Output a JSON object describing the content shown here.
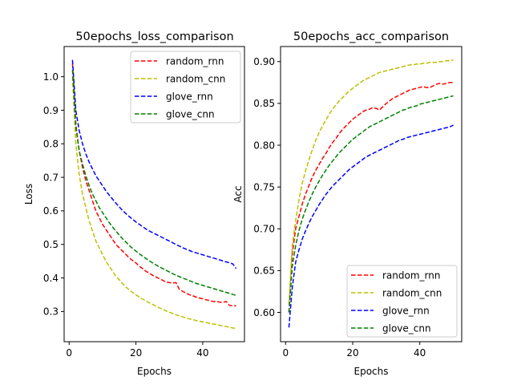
{
  "chart_data": [
    {
      "type": "line",
      "title": "50epochs_loss_comparison",
      "xlabel": "Epochs",
      "ylabel": "Loss",
      "xlim": [
        -1.5,
        52.5
      ],
      "ylim": [
        0.21,
        1.09
      ],
      "xticks": [
        0,
        20,
        40
      ],
      "yticks": [
        0.3,
        0.4,
        0.5,
        0.6,
        0.7,
        0.8,
        0.9,
        1.0
      ],
      "ytick_labels": [
        "0.3",
        "0.4",
        "0.5",
        "0.6",
        "0.7",
        "0.8",
        "0.9",
        "1.0"
      ],
      "legend_position": "upper right",
      "x": [
        1,
        2,
        3,
        4,
        5,
        6,
        7,
        8,
        9,
        10,
        11,
        12,
        13,
        14,
        15,
        16,
        17,
        18,
        19,
        20,
        21,
        22,
        23,
        24,
        25,
        26,
        27,
        28,
        29,
        30,
        31,
        32,
        33,
        34,
        35,
        36,
        37,
        38,
        39,
        40,
        41,
        42,
        43,
        44,
        45,
        46,
        47,
        48,
        49,
        50
      ],
      "series": [
        {
          "name": "random_rnn",
          "color": "#ff0000",
          "values": [
            1.04,
            0.86,
            0.78,
            0.73,
            0.69,
            0.66,
            0.63,
            0.6,
            0.58,
            0.56,
            0.545,
            0.53,
            0.515,
            0.5,
            0.49,
            0.48,
            0.47,
            0.46,
            0.452,
            0.445,
            0.435,
            0.428,
            0.42,
            0.414,
            0.408,
            0.403,
            0.398,
            0.393,
            0.388,
            0.386,
            0.385,
            0.386,
            0.366,
            0.36,
            0.355,
            0.35,
            0.347,
            0.343,
            0.34,
            0.338,
            0.335,
            0.333,
            0.33,
            0.33,
            0.328,
            0.327,
            0.33,
            0.318,
            0.317,
            0.317
          ]
        },
        {
          "name": "random_cnn",
          "color": "#bfbf00",
          "values": [
            1.0,
            0.8,
            0.71,
            0.65,
            0.61,
            0.57,
            0.54,
            0.51,
            0.49,
            0.47,
            0.45,
            0.435,
            0.42,
            0.405,
            0.395,
            0.383,
            0.373,
            0.365,
            0.357,
            0.35,
            0.343,
            0.337,
            0.332,
            0.326,
            0.321,
            0.316,
            0.311,
            0.307,
            0.302,
            0.298,
            0.294,
            0.29,
            0.287,
            0.284,
            0.281,
            0.278,
            0.276,
            0.273,
            0.271,
            0.269,
            0.267,
            0.265,
            0.263,
            0.261,
            0.259,
            0.257,
            0.255,
            0.253,
            0.251,
            0.249
          ]
        },
        {
          "name": "glove_rnn",
          "color": "#0000ff",
          "values": [
            1.05,
            0.9,
            0.84,
            0.8,
            0.77,
            0.745,
            0.725,
            0.705,
            0.69,
            0.675,
            0.66,
            0.647,
            0.635,
            0.623,
            0.612,
            0.601,
            0.592,
            0.583,
            0.575,
            0.567,
            0.56,
            0.553,
            0.546,
            0.54,
            0.535,
            0.53,
            0.525,
            0.52,
            0.515,
            0.51,
            0.505,
            0.5,
            0.495,
            0.49,
            0.486,
            0.482,
            0.478,
            0.475,
            0.472,
            0.469,
            0.466,
            0.463,
            0.46,
            0.457,
            0.454,
            0.451,
            0.448,
            0.445,
            0.442,
            0.428
          ]
        },
        {
          "name": "glove_cnn",
          "color": "#008000",
          "values": [
            1.02,
            0.85,
            0.78,
            0.74,
            0.705,
            0.675,
            0.65,
            0.63,
            0.61,
            0.595,
            0.58,
            0.565,
            0.552,
            0.54,
            0.528,
            0.517,
            0.507,
            0.497,
            0.488,
            0.48,
            0.472,
            0.465,
            0.458,
            0.451,
            0.445,
            0.439,
            0.433,
            0.428,
            0.423,
            0.418,
            0.413,
            0.408,
            0.404,
            0.4,
            0.396,
            0.392,
            0.388,
            0.384,
            0.381,
            0.378,
            0.375,
            0.372,
            0.369,
            0.366,
            0.363,
            0.36,
            0.357,
            0.354,
            0.351,
            0.348
          ]
        }
      ]
    },
    {
      "type": "line",
      "title": "50epochs_acc_comparison",
      "xlabel": "Epochs",
      "ylabel": "Acc",
      "xlim": [
        -1.5,
        52.5
      ],
      "ylim": [
        0.565,
        0.918
      ],
      "xticks": [
        0,
        20,
        40
      ],
      "yticks": [
        0.6,
        0.65,
        0.7,
        0.75,
        0.8,
        0.85,
        0.9
      ],
      "ytick_labels": [
        "0.60",
        "0.65",
        "0.70",
        "0.75",
        "0.80",
        "0.85",
        "0.90"
      ],
      "legend_position": "lower right",
      "x": [
        1,
        2,
        3,
        4,
        5,
        6,
        7,
        8,
        9,
        10,
        11,
        12,
        13,
        14,
        15,
        16,
        17,
        18,
        19,
        20,
        21,
        22,
        23,
        24,
        25,
        26,
        27,
        28,
        29,
        30,
        31,
        32,
        33,
        34,
        35,
        36,
        37,
        38,
        39,
        40,
        41,
        42,
        43,
        44,
        45,
        46,
        47,
        48,
        49,
        50
      ],
      "series": [
        {
          "name": "random_rnn",
          "color": "#ff0000",
          "values": [
            0.6,
            0.67,
            0.7,
            0.715,
            0.73,
            0.742,
            0.752,
            0.762,
            0.77,
            0.777,
            0.784,
            0.79,
            0.797,
            0.803,
            0.808,
            0.814,
            0.819,
            0.823,
            0.827,
            0.831,
            0.834,
            0.837,
            0.84,
            0.842,
            0.843,
            0.845,
            0.844,
            0.842,
            0.846,
            0.85,
            0.853,
            0.856,
            0.858,
            0.86,
            0.862,
            0.864,
            0.866,
            0.867,
            0.868,
            0.869,
            0.87,
            0.869,
            0.869,
            0.871,
            0.873,
            0.874,
            0.873,
            0.874,
            0.875,
            0.875
          ]
        },
        {
          "name": "random_cnn",
          "color": "#bfbf00",
          "values": [
            0.61,
            0.68,
            0.71,
            0.735,
            0.755,
            0.77,
            0.783,
            0.795,
            0.806,
            0.815,
            0.823,
            0.83,
            0.837,
            0.843,
            0.848,
            0.853,
            0.857,
            0.861,
            0.865,
            0.868,
            0.871,
            0.874,
            0.877,
            0.879,
            0.881,
            0.883,
            0.885,
            0.887,
            0.888,
            0.889,
            0.89,
            0.891,
            0.892,
            0.893,
            0.894,
            0.895,
            0.896,
            0.896,
            0.897,
            0.897,
            0.898,
            0.898,
            0.899,
            0.899,
            0.899,
            0.9,
            0.9,
            0.901,
            0.901,
            0.902
          ]
        },
        {
          "name": "glove_rnn",
          "color": "#0000ff",
          "values": [
            0.582,
            0.63,
            0.66,
            0.675,
            0.688,
            0.698,
            0.707,
            0.715,
            0.722,
            0.729,
            0.735,
            0.741,
            0.746,
            0.751,
            0.755,
            0.759,
            0.763,
            0.767,
            0.771,
            0.774,
            0.777,
            0.78,
            0.783,
            0.786,
            0.788,
            0.79,
            0.792,
            0.794,
            0.796,
            0.798,
            0.8,
            0.802,
            0.804,
            0.806,
            0.807,
            0.809,
            0.81,
            0.811,
            0.812,
            0.813,
            0.814,
            0.815,
            0.816,
            0.817,
            0.818,
            0.819,
            0.82,
            0.821,
            0.822,
            0.824
          ]
        },
        {
          "name": "glove_cnn",
          "color": "#008000",
          "values": [
            0.6,
            0.655,
            0.68,
            0.698,
            0.712,
            0.723,
            0.733,
            0.742,
            0.75,
            0.757,
            0.764,
            0.77,
            0.776,
            0.781,
            0.786,
            0.791,
            0.795,
            0.799,
            0.803,
            0.807,
            0.81,
            0.813,
            0.816,
            0.819,
            0.822,
            0.824,
            0.826,
            0.828,
            0.83,
            0.832,
            0.834,
            0.836,
            0.838,
            0.84,
            0.842,
            0.843,
            0.845,
            0.846,
            0.847,
            0.849,
            0.85,
            0.851,
            0.852,
            0.853,
            0.854,
            0.855,
            0.856,
            0.857,
            0.858,
            0.859
          ]
        }
      ]
    }
  ]
}
